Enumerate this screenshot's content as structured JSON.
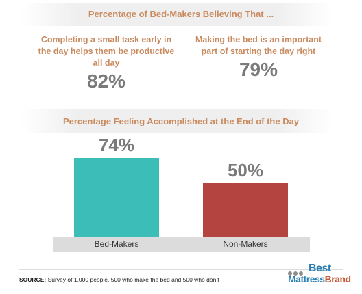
{
  "section1": {
    "title": "Percentage of Bed-Makers Believing That ...",
    "stats": [
      {
        "text": "Completing a small task early in the day helps them be productive all day",
        "value": "82%"
      },
      {
        "text": "Making the bed is an important part of starting the day right",
        "value": "79%"
      }
    ]
  },
  "section2": {
    "title": "Percentage Feeling Accomplished at the End of the Day"
  },
  "chart_data": {
    "type": "bar",
    "title": "Percentage Feeling Accomplished at the End of the Day",
    "categories": [
      "Bed-Makers",
      "Non-Makers"
    ],
    "values": [
      74,
      50
    ],
    "value_labels": [
      "74%",
      "50%"
    ],
    "colors": [
      "#3dbdb7",
      "#b4443f"
    ],
    "ylim": [
      0,
      100
    ]
  },
  "footer": {
    "source_label": "SOURCE:",
    "source_text": "Survey of 1,000 people, 500 who make the bed and 500 who don’t"
  },
  "logo": {
    "line1": "Best",
    "line2a": "Mattress",
    "line2b": "Brand"
  }
}
